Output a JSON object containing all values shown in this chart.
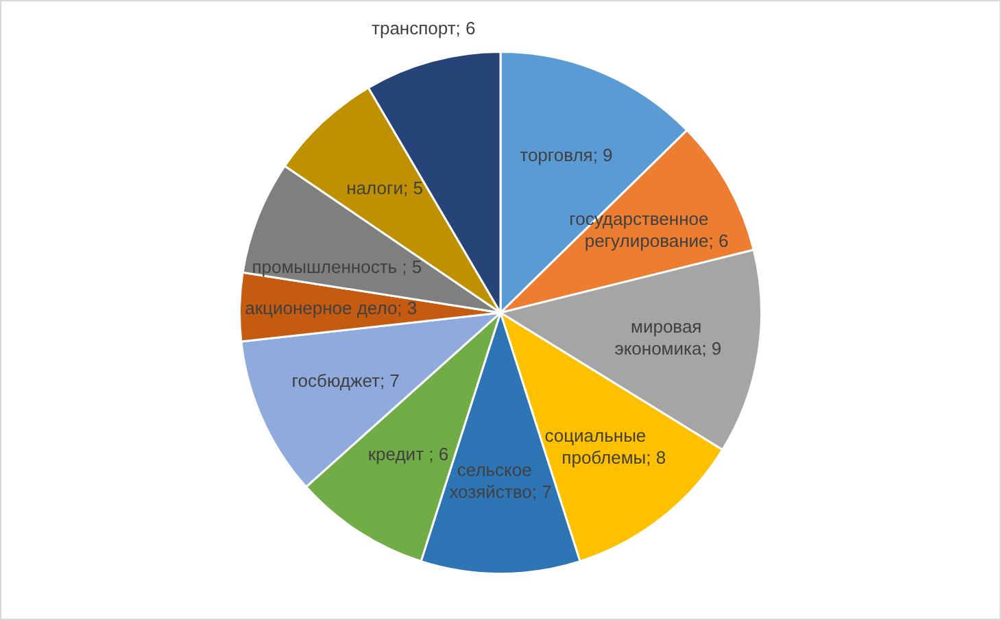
{
  "chart_data": {
    "type": "pie",
    "categories": [
      "торговля",
      "государственное регулирование",
      "мировая экономика",
      "социальные проблемы",
      "сельское хозяйство",
      "кредит ",
      "госбюджет",
      "акционерное дело",
      "промышленность ",
      "налоги",
      "транспорт"
    ],
    "values": [
      9,
      6,
      9,
      8,
      7,
      6,
      7,
      3,
      5,
      5,
      6
    ],
    "value_labels": [
      "; 9",
      "; 6",
      "; 9",
      "; 8",
      "; 7",
      "; 6",
      "; 7",
      "; 3",
      "; 5",
      "; 5",
      "; 6"
    ],
    "colors": [
      "#5b9bd5",
      "#ed7d31",
      "#a5a5a5",
      "#ffc000",
      "#2e75b6",
      "#70ad47",
      "#8faadc",
      "#c55a11",
      "#7f7f7f",
      "#bf9000",
      "#264478"
    ]
  }
}
